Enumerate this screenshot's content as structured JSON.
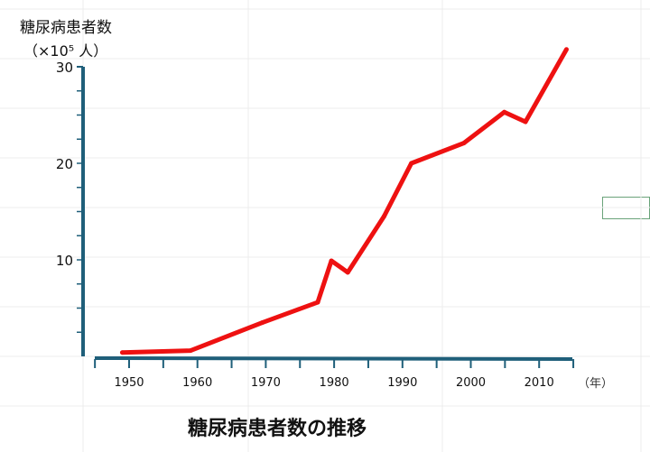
{
  "chart_data": {
    "type": "line",
    "title": "糖尿病患者数の推移",
    "ylabel_line1": "糖尿病患者数",
    "ylabel_line2": "（×10⁵ 人）",
    "xlabel": "（年）",
    "xlim": [
      1945,
      2015
    ],
    "ylim": [
      0,
      30
    ],
    "x_ticks": [
      1950,
      1960,
      1970,
      1980,
      1990,
      2000,
      2010
    ],
    "y_ticks": [
      10,
      20,
      30
    ],
    "grid": false,
    "line_color": "#ee1111",
    "axis_color": "#1f5f7a",
    "series": [
      {
        "name": "糖尿病患者数",
        "x": [
          1949,
          1959,
          1969.5,
          1977.6,
          1979.6,
          1982,
          1987.3,
          1991.3,
          1999,
          2004.9,
          2008,
          2014
        ],
        "y": [
          0.4,
          0.6,
          3.5,
          5.6,
          9.9,
          8.7,
          14.5,
          20,
          22.1,
          25.3,
          24.3,
          31.8
        ]
      }
    ]
  }
}
